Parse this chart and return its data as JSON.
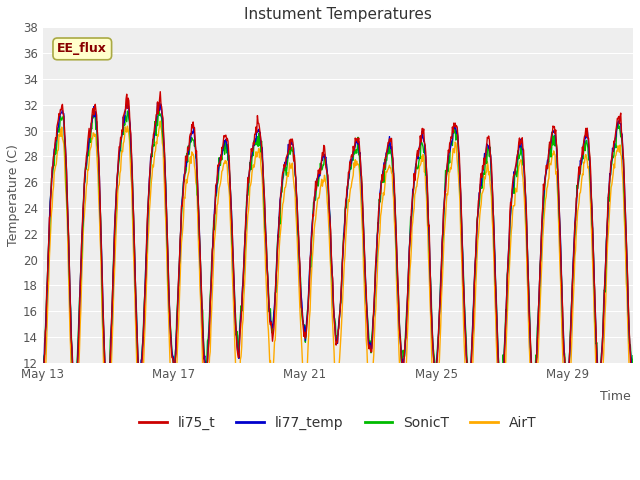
{
  "title": "Instument Temperatures",
  "xlabel": "Time",
  "ylabel": "Temperature (C)",
  "ylim": [
    12,
    38
  ],
  "yticks": [
    12,
    14,
    16,
    18,
    20,
    22,
    24,
    26,
    28,
    30,
    32,
    34,
    36,
    38
  ],
  "xtick_labels": [
    "May 13",
    "May 17",
    "May 21",
    "May 25",
    "May 29"
  ],
  "xtick_positions": [
    0,
    4,
    8,
    12,
    16
  ],
  "colors": {
    "li75_t": "#cc0000",
    "li77_temp": "#0000cc",
    "SonicT": "#00bb00",
    "AirT": "#ffaa00"
  },
  "annotation_text": "EE_flux",
  "annotation_color": "#880000",
  "annotation_bg": "#ffffcc",
  "annotation_border": "#aaaa44",
  "plot_bg": "#eeeeee",
  "fig_bg": "#ffffff",
  "grid_color": "#ffffff",
  "n_days": 18,
  "points_per_day": 48
}
